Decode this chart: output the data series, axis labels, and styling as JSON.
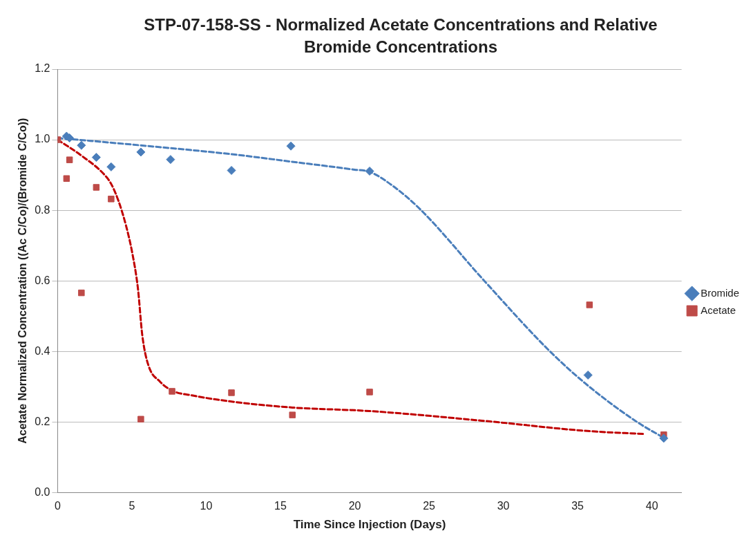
{
  "chart_data": {
    "type": "scatter",
    "title": "STP-07-158-SS - Normalized Acetate Concentrations and Relative Bromide Concentrations",
    "xlabel": "Time Since Injection (Days)",
    "ylabel": "Acetate Normalized Concentration ((Ac C/Co)/(Bromide C/Co))",
    "xlim": [
      0,
      42
    ],
    "xticks": [
      0,
      5,
      10,
      15,
      20,
      25,
      30,
      35,
      40
    ],
    "ylim": [
      0,
      1.2
    ],
    "yticks": [
      {
        "value": 0,
        "label": "0.0"
      },
      {
        "value": 0.2,
        "label": "0.2"
      },
      {
        "value": 0.4,
        "label": "0.4"
      },
      {
        "value": 0.6,
        "label": "0.6"
      },
      {
        "value": 0.8,
        "label": "0.8"
      },
      {
        "value": 1,
        "label": "1.0"
      },
      {
        "value": 1.2,
        "label": "1.2"
      }
    ],
    "grid": "y",
    "legend": "right",
    "series": [
      {
        "name": "Bromide",
        "marker": "diamond",
        "color": "#4a7ebb",
        "x": [
          0.6,
          0.8,
          1.6,
          2.6,
          3.6,
          5.6,
          7.6,
          11.7,
          15.7,
          21,
          35.7,
          40.8
        ],
        "values": [
          1.01,
          1.005,
          0.984,
          0.95,
          0.923,
          0.965,
          0.944,
          0.913,
          0.982,
          0.911,
          0.333,
          0.154
        ]
      },
      {
        "name": "Acetate",
        "marker": "square",
        "color": "#be4b48",
        "x": [
          0,
          0.6,
          0.8,
          1.6,
          2.6,
          3.6,
          5.6,
          7.7,
          11.7,
          15.8,
          21,
          35.8,
          40.8
        ],
        "values": [
          1,
          0.89,
          0.943,
          0.566,
          0.865,
          0.832,
          0.208,
          0.287,
          0.283,
          0.22,
          0.285,
          0.532,
          0.164
        ]
      },
      {
        "type": "line",
        "marker": "none",
        "line_style": "dashed",
        "color": "#4a7ebb",
        "x": [
          0,
          5.6,
          11.7,
          15.7,
          20,
          21,
          22.5,
          24.4,
          28.7,
          33,
          35.5,
          39,
          40.6
        ],
        "values": [
          1.005,
          0.984,
          0.959,
          0.938,
          0.915,
          0.909,
          0.871,
          0.803,
          0.601,
          0.406,
          0.31,
          0.2,
          0.16
        ]
      },
      {
        "type": "line",
        "marker": "none",
        "line_style": "dashed",
        "color": "#c00000",
        "x": [
          0,
          1.6,
          3.1,
          3.6,
          4.1,
          4.6,
          5,
          5.4,
          5.7,
          6.1,
          6.9,
          7.7,
          9.1,
          11.7,
          15.8,
          21,
          29,
          35.5,
          39.5
        ],
        "values": [
          1,
          0.955,
          0.903,
          0.875,
          0.826,
          0.757,
          0.684,
          0.58,
          0.445,
          0.362,
          0.314,
          0.289,
          0.275,
          0.258,
          0.241,
          0.231,
          0.202,
          0.175,
          0.166
        ]
      }
    ]
  }
}
